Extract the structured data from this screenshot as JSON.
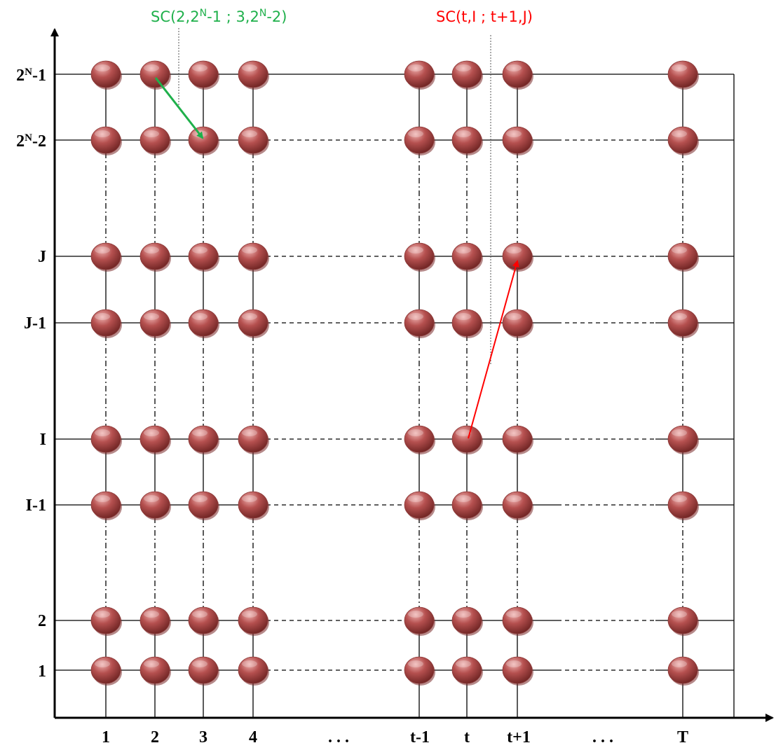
{
  "colors": {
    "node_fill": "#b5504f",
    "node_light": "#e79a98",
    "node_dark": "#6e2423",
    "grid": "#000000",
    "green_arrow": "#1fb04b",
    "red_arrow": "#ff0000"
  },
  "x_axis": {
    "labels": [
      {
        "key": "1",
        "text": "1"
      },
      {
        "key": "2",
        "text": "2"
      },
      {
        "key": "3",
        "text": "3"
      },
      {
        "key": "4",
        "text": "4"
      },
      {
        "key": "dots",
        "text": ". . ."
      },
      {
        "key": "tm1",
        "text": "t-1"
      },
      {
        "key": "t",
        "text": "t"
      },
      {
        "key": "tp1",
        "text": "t+1"
      },
      {
        "key": "dots2",
        "text": ". . ."
      },
      {
        "key": "T",
        "text": "T"
      }
    ]
  },
  "y_axis": {
    "labels": [
      {
        "key": "top",
        "base": "2",
        "sup": "N",
        "tail": "-1"
      },
      {
        "key": "top2",
        "base": "2",
        "sup": "N",
        "tail": "-2"
      },
      {
        "key": "J",
        "base": "J",
        "sup": "",
        "tail": ""
      },
      {
        "key": "Jm1",
        "base": "J-1",
        "sup": "",
        "tail": ""
      },
      {
        "key": "I",
        "base": "I",
        "sup": "",
        "tail": ""
      },
      {
        "key": "Im1",
        "base": "I-1",
        "sup": "",
        "tail": ""
      },
      {
        "key": "2",
        "base": "2",
        "sup": "",
        "tail": ""
      },
      {
        "key": "1",
        "base": "1",
        "sup": "",
        "tail": ""
      }
    ]
  },
  "annotations": {
    "green": {
      "p1": "SC(2,2",
      "s1": "N",
      "p2": "-1 ; 3,2",
      "s2": "N",
      "p3": "-2)"
    },
    "red": {
      "text": "SC(t,I ; t+1,J)"
    }
  }
}
